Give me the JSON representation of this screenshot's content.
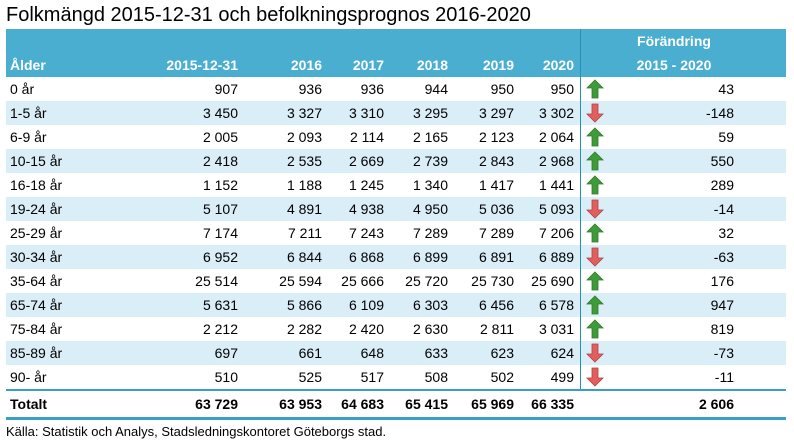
{
  "title": "Folkmängd 2015-12-31 och befolkningsprognos 2016-2020",
  "header": {
    "row1_change": "Förändring",
    "age": "Ålder",
    "c1": "2015-12-31",
    "c2": "2016",
    "c3": "2017",
    "c4": "2018",
    "c5": "2019",
    "c6": "2020",
    "change_range": "2015 - 2020"
  },
  "rows": [
    {
      "age": "0 år",
      "v": [
        "907",
        "936",
        "936",
        "944",
        "950",
        "950"
      ],
      "dir": "up",
      "change": "43"
    },
    {
      "age": "1-5 år",
      "v": [
        "3 450",
        "3 327",
        "3 310",
        "3 295",
        "3 297",
        "3 302"
      ],
      "dir": "down",
      "change": "-148"
    },
    {
      "age": "6-9 år",
      "v": [
        "2 005",
        "2 093",
        "2 114",
        "2 165",
        "2 123",
        "2 064"
      ],
      "dir": "up",
      "change": "59"
    },
    {
      "age": "10-15 år",
      "v": [
        "2 418",
        "2 535",
        "2 669",
        "2 739",
        "2 843",
        "2 968"
      ],
      "dir": "up",
      "change": "550"
    },
    {
      "age": "16-18 år",
      "v": [
        "1 152",
        "1 188",
        "1 245",
        "1 340",
        "1 417",
        "1 441"
      ],
      "dir": "up",
      "change": "289"
    },
    {
      "age": "19-24 år",
      "v": [
        "5 107",
        "4 891",
        "4 938",
        "4 950",
        "5 036",
        "5 093"
      ],
      "dir": "down",
      "change": "-14"
    },
    {
      "age": "25-29 år",
      "v": [
        "7 174",
        "7 211",
        "7 243",
        "7 289",
        "7 289",
        "7 206"
      ],
      "dir": "up",
      "change": "32"
    },
    {
      "age": "30-34 år",
      "v": [
        "6 952",
        "6 844",
        "6 868",
        "6 899",
        "6 891",
        "6 889"
      ],
      "dir": "down",
      "change": "-63"
    },
    {
      "age": "35-64 år",
      "v": [
        "25 514",
        "25 594",
        "25 666",
        "25 720",
        "25 730",
        "25 690"
      ],
      "dir": "up",
      "change": "176"
    },
    {
      "age": "65-74 år",
      "v": [
        "5 631",
        "5 866",
        "6 109",
        "6 303",
        "6 456",
        "6 578"
      ],
      "dir": "up",
      "change": "947"
    },
    {
      "age": "75-84 år",
      "v": [
        "2 212",
        "2 282",
        "2 420",
        "2 630",
        "2 811",
        "3 031"
      ],
      "dir": "up",
      "change": "819"
    },
    {
      "age": "85-89 år",
      "v": [
        "697",
        "661",
        "648",
        "633",
        "623",
        "624"
      ],
      "dir": "down",
      "change": "-73"
    },
    {
      "age": "90- år",
      "v": [
        "510",
        "525",
        "517",
        "508",
        "502",
        "499"
      ],
      "dir": "down",
      "change": "-11"
    }
  ],
  "total": {
    "label": "Totalt",
    "v": [
      "63 729",
      "63 953",
      "64 683",
      "65 415",
      "65 969",
      "66 335"
    ],
    "change": "2 606"
  },
  "source": "Källa:  Statistik och Analys, Stadsledningskontoret Göteborgs stad.",
  "colors": {
    "header_bg": "#4aaed0",
    "band": "#d9eef6",
    "up_arrow": "#3f9a3a",
    "down_arrow": "#e06060"
  },
  "icons": {
    "up": "green-up-arrow-icon",
    "down": "red-down-arrow-icon"
  }
}
